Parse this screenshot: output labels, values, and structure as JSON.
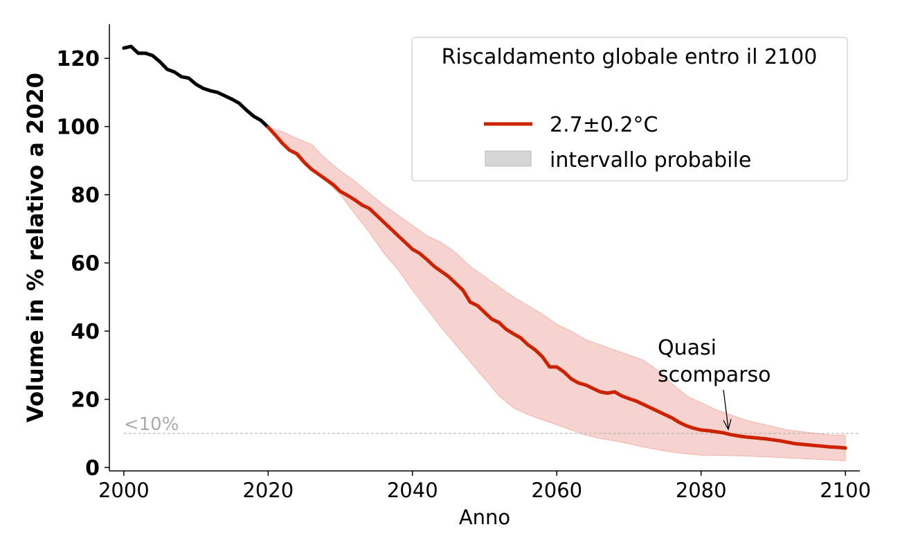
{
  "chart_data": {
    "type": "line",
    "xlabel": "Anno",
    "ylabel": "Volume in % relativo a 2020",
    "xlim": [
      1998,
      2102
    ],
    "ylim": [
      -1,
      130
    ],
    "x_ticks": [
      2000,
      2020,
      2040,
      2060,
      2080,
      2100
    ],
    "y_ticks": [
      0,
      20,
      40,
      60,
      80,
      100,
      120
    ],
    "legend": {
      "title": "Riscaldamento globale entro il 2100",
      "position": "top-right",
      "entries": [
        "2.7±0.2°C",
        "intervallo probabile"
      ]
    },
    "threshold": {
      "y": 10,
      "label": "<10%"
    },
    "annotation": {
      "text_line1": "Quasi",
      "text_line2": "scomparso",
      "x": 2084,
      "y": 10
    },
    "colors": {
      "historical": "#000000",
      "projection": "#cc2200",
      "band": "#f08070",
      "band_fill": "#f6d3cf",
      "threshold": "#aaaaaa",
      "legend_patch": "#d6d6d6"
    },
    "series": [
      {
        "name": "historical",
        "x": [
          2000,
          2001,
          2002,
          2003,
          2004,
          2005,
          2006,
          2007,
          2008,
          2009,
          2010,
          2011,
          2012,
          2013,
          2014,
          2015,
          2016,
          2017,
          2018,
          2019,
          2020
        ],
        "values": [
          123,
          123.5,
          121.5,
          121.5,
          120.8,
          119,
          116.8,
          116,
          114.6,
          114.2,
          112.4,
          111.2,
          110.5,
          110,
          109,
          108,
          106.8,
          104.8,
          103,
          101.8,
          99.8
        ]
      },
      {
        "name": "2.7±0.2°C",
        "x": [
          2020,
          2021,
          2022,
          2023,
          2024,
          2025,
          2026,
          2027,
          2028,
          2029,
          2030,
          2031,
          2032,
          2033,
          2034,
          2035,
          2036,
          2037,
          2038,
          2039,
          2040,
          2041,
          2042,
          2043,
          2044,
          2045,
          2046,
          2047,
          2048,
          2049,
          2050,
          2051,
          2052,
          2053,
          2054,
          2055,
          2056,
          2057,
          2058,
          2059,
          2060,
          2061,
          2062,
          2063,
          2064,
          2065,
          2066,
          2067,
          2068,
          2069,
          2070,
          2071,
          2072,
          2073,
          2074,
          2075,
          2076,
          2077,
          2078,
          2079,
          2080,
          2081,
          2082,
          2083,
          2084,
          2085,
          2086,
          2087,
          2088,
          2089,
          2090,
          2091,
          2092,
          2093,
          2094,
          2095,
          2096,
          2097,
          2098,
          2099,
          2100
        ],
        "values": [
          99.8,
          97.5,
          95,
          93,
          92,
          89.5,
          87.5,
          86,
          84.5,
          83,
          81,
          79.8,
          78.5,
          77,
          76,
          74,
          72,
          70,
          68,
          66,
          64,
          62.8,
          61,
          59,
          57.5,
          56,
          54,
          52,
          48.5,
          47.5,
          45.5,
          43.5,
          42.5,
          40.5,
          39.2,
          38,
          36,
          34.5,
          32.5,
          29.5,
          29.5,
          28,
          26,
          24.8,
          24.2,
          23.2,
          22.2,
          21.8,
          22.2,
          21,
          20.2,
          19.5,
          18.5,
          17.5,
          16.5,
          15.5,
          14.5,
          13.2,
          12.2,
          11.5,
          11,
          10.8,
          10.5,
          10.2,
          9.7,
          9.3,
          9,
          8.8,
          8.6,
          8.4,
          8.1,
          7.8,
          7.4,
          7,
          6.8,
          6.6,
          6.4,
          6.2,
          6,
          5.9,
          5.7
        ]
      }
    ],
    "band": {
      "name": "intervallo probabile",
      "x": [
        2020,
        2022,
        2024,
        2026,
        2028,
        2030,
        2032,
        2034,
        2036,
        2038,
        2040,
        2042,
        2044,
        2046,
        2048,
        2050,
        2052,
        2054,
        2056,
        2058,
        2060,
        2062,
        2064,
        2066,
        2068,
        2070,
        2072,
        2074,
        2076,
        2078,
        2080,
        2082,
        2084,
        2086,
        2088,
        2090,
        2092,
        2094,
        2096,
        2098,
        2100
      ],
      "lower": [
        99.8,
        96,
        91,
        87,
        84,
        80,
        74.5,
        69,
        63,
        58,
        52,
        46.5,
        41,
        36,
        31,
        26,
        21,
        17.5,
        15.5,
        14,
        12.5,
        11,
        9.5,
        8.5,
        7.8,
        7,
        6,
        5.2,
        4.5,
        4,
        3.6,
        3.6,
        3.5,
        3.4,
        3.2,
        3,
        2.8,
        2.6,
        2.4,
        2.2,
        2
      ],
      "upper": [
        99.8,
        98.5,
        96.5,
        94.8,
        90.5,
        87,
        84,
        80.5,
        77,
        74,
        71,
        68,
        66,
        63,
        59,
        56,
        53,
        50,
        47.5,
        45,
        42,
        40,
        37.5,
        36,
        34.5,
        33,
        31.5,
        28.5,
        24.5,
        21,
        19,
        17,
        15.5,
        14,
        13,
        12,
        11,
        10.5,
        10,
        9.5,
        9.5
      ]
    }
  }
}
